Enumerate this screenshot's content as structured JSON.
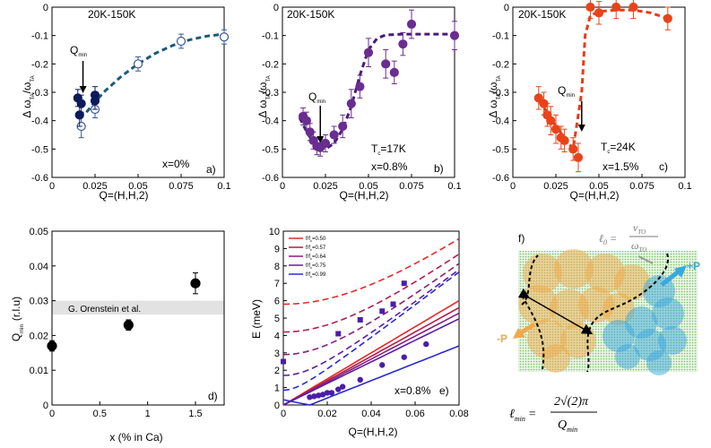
{
  "colors": {
    "panel_a_filled": "#0d1a5c",
    "panel_a_open": "#3a5a9a",
    "panel_a_fit": "#1a5a7a",
    "panel_b": "#6a2d91",
    "panel_b_fit": "#4b1a78",
    "panel_c": "#e8441a",
    "panel_c_fit": "#e83a1a",
    "panel_d": "#000000",
    "band": "#e2e2e2",
    "panel_f_orange": "#f0a94a",
    "panel_f_blue": "#3aa8e0",
    "panel_f_green": "#7bbf6a"
  },
  "chart_data": [
    {
      "panel": "a",
      "type": "scatter",
      "title": "20K-150K",
      "panel_label": "a)",
      "composition_label": "x=0%",
      "qmin_label": "Q",
      "qmin_sub": "min",
      "xlabel": "Q=(H,H,2)",
      "ylabel_main": "Δ ω",
      "ylabel_sub1": "TA",
      "ylabel_mid": "/ω",
      "ylabel_sub2": "TA",
      "xlim": [
        0,
        0.1
      ],
      "ylim": [
        -0.6,
        0
      ],
      "xticks": [
        "0",
        "0.025",
        "0.05",
        "0.075",
        "0.1"
      ],
      "yticks": [
        "0",
        "-0.1",
        "-0.2",
        "-0.3",
        "-0.4",
        "-0.5",
        "-0.6"
      ],
      "arrow_x": 0.018,
      "series": [
        {
          "name": "filled",
          "x": [
            0.015,
            0.016,
            0.017,
            0.025,
            0.025
          ],
          "y": [
            -0.32,
            -0.38,
            -0.34,
            -0.31,
            -0.33
          ],
          "err": [
            0.03,
            0.04,
            0.03,
            0.03,
            0.03
          ]
        },
        {
          "name": "open",
          "x": [
            0.017,
            0.025,
            0.05,
            0.075,
            0.1
          ],
          "y": [
            -0.42,
            -0.36,
            -0.2,
            -0.12,
            -0.105
          ],
          "err": [
            0.04,
            0.03,
            0.025,
            0.025,
            0.025
          ]
        }
      ],
      "fit": {
        "x": [
          0.02,
          0.03,
          0.04,
          0.05,
          0.06,
          0.07,
          0.08,
          0.09,
          0.1
        ],
        "y": [
          -0.37,
          -0.3,
          -0.245,
          -0.2,
          -0.163,
          -0.135,
          -0.115,
          -0.102,
          -0.095
        ]
      }
    },
    {
      "panel": "b",
      "type": "scatter",
      "title": "20K-150K",
      "panel_label": "b)",
      "composition_label": "x=0.8%",
      "tc_label": "T",
      "tc_sub": "c",
      "tc_value": "=17K",
      "qmin_label": "Q",
      "qmin_sub": "min",
      "xlabel": "Q=(H,H,2)",
      "ylabel_main": "Δ ω",
      "ylabel_sub1": "TA",
      "ylabel_mid": "/ω",
      "ylabel_sub2": "TA",
      "xlim": [
        0,
        0.1
      ],
      "ylim": [
        -0.6,
        0
      ],
      "xticks": [
        "0",
        "0.025",
        "0.05",
        "0.075",
        "0.1"
      ],
      "yticks": [
        "0",
        "-0.1",
        "-0.2",
        "-0.3",
        "-0.4",
        "-0.5",
        "-0.6"
      ],
      "arrow_x": 0.022,
      "series": [
        {
          "name": "data",
          "x": [
            0.012,
            0.014,
            0.016,
            0.018,
            0.02,
            0.022,
            0.025,
            0.03,
            0.035,
            0.04,
            0.045,
            0.05,
            0.06,
            0.065,
            0.07,
            0.075,
            0.1
          ],
          "y": [
            -0.385,
            -0.4,
            -0.44,
            -0.47,
            -0.49,
            -0.495,
            -0.48,
            -0.45,
            -0.42,
            -0.34,
            -0.28,
            -0.16,
            -0.2,
            -0.23,
            -0.13,
            -0.06,
            -0.1
          ],
          "err": [
            0.03,
            0.03,
            0.03,
            0.03,
            0.03,
            0.03,
            0.03,
            0.03,
            0.04,
            0.05,
            0.04,
            0.05,
            0.05,
            0.04,
            0.04,
            0.05,
            0.05
          ]
        }
      ],
      "fit": {
        "x": [
          0.01,
          0.015,
          0.02,
          0.025,
          0.03,
          0.035,
          0.04,
          0.045,
          0.05,
          0.055,
          0.06,
          0.07,
          0.08,
          0.09,
          0.1
        ],
        "y": [
          -0.39,
          -0.45,
          -0.49,
          -0.5,
          -0.48,
          -0.43,
          -0.35,
          -0.24,
          -0.15,
          -0.11,
          -0.098,
          -0.095,
          -0.095,
          -0.095,
          -0.095
        ]
      }
    },
    {
      "panel": "c",
      "type": "scatter",
      "title": "20K-150K",
      "panel_label": "c)",
      "composition_label": "x=1.5%",
      "tc_label": "T",
      "tc_sub": "c",
      "tc_value": "=24K",
      "qmin_label": "Q",
      "qmin_sub": "min",
      "xlabel": "Q=(H,H,2)",
      "ylabel_main": "Δ ω",
      "ylabel_sub1": "TA",
      "ylabel_mid": "/ω",
      "ylabel_sub2": "TA",
      "xlim": [
        0,
        0.1
      ],
      "ylim": [
        -0.6,
        0
      ],
      "xticks": [
        "0",
        "0.025",
        "0.05",
        "0.075",
        "0.1"
      ],
      "yticks": [
        "0",
        "-0.1",
        "-0.2",
        "-0.3",
        "-0.4",
        "-0.5",
        "-0.6"
      ],
      "arrow_x": 0.04,
      "series": [
        {
          "name": "data",
          "x": [
            0.015,
            0.018,
            0.02,
            0.022,
            0.025,
            0.028,
            0.03,
            0.035,
            0.038,
            0.045,
            0.05,
            0.06,
            0.07,
            0.09
          ],
          "y": [
            -0.32,
            -0.34,
            -0.38,
            -0.4,
            -0.43,
            -0.46,
            -0.47,
            -0.5,
            -0.53,
            0.0,
            -0.02,
            0.0,
            0.0,
            -0.04
          ],
          "err": [
            0.04,
            0.04,
            0.04,
            0.05,
            0.05,
            0.04,
            0.04,
            0.04,
            0.05,
            0.04,
            0.04,
            0.04,
            0.04,
            0.04
          ]
        }
      ],
      "fit": {
        "x": [
          0.015,
          0.02,
          0.025,
          0.03,
          0.035,
          0.04,
          0.042,
          0.045,
          0.05,
          0.06,
          0.07,
          0.08,
          0.09
        ],
        "y": [
          -0.33,
          -0.37,
          -0.42,
          -0.46,
          -0.5,
          -0.3,
          -0.1,
          -0.03,
          -0.015,
          -0.01,
          -0.01,
          -0.02,
          -0.04
        ]
      }
    },
    {
      "panel": "d",
      "type": "scatter",
      "panel_label": "d)",
      "band_label": "G. Orenstein et al.",
      "xlabel": "x (% in Ca)",
      "ylabel": "Q",
      "ylabel_sub": "min",
      "ylabel_unit": "(r.l.u)",
      "xlim": [
        0,
        1.8
      ],
      "ylim": [
        0,
        0.05
      ],
      "band": [
        0.026,
        0.03
      ],
      "xticks": [
        "0",
        "0.5",
        "1",
        "1.5"
      ],
      "yticks": [
        "0",
        "0.01",
        "0.02",
        "0.03",
        "0.04",
        "0.05"
      ],
      "series": [
        {
          "name": "Qmin",
          "x": [
            0,
            0.8,
            1.5
          ],
          "y": [
            0.017,
            0.023,
            0.035
          ],
          "err": [
            0.0015,
            0.0015,
            0.003
          ]
        }
      ]
    },
    {
      "panel": "e",
      "type": "line",
      "panel_label": "e)",
      "composition_label": "x=0.8%",
      "xlabel": "Q=(H,H,2)",
      "ylabel": "E (meV)",
      "xlim": [
        0,
        0.08
      ],
      "ylim": [
        0,
        10
      ],
      "xticks": [
        "0",
        "0.02",
        "0.04",
        "0.06",
        "0.08"
      ],
      "yticks": [
        "0",
        "1",
        "2",
        "3",
        "4",
        "5",
        "6",
        "7",
        "8",
        "9",
        "10"
      ],
      "legend": [
        "f/f_c=0.50",
        "f/f_c=0.57",
        "f/f_c=0.64",
        "f/f_c=0.75",
        "f/f_c=0.99"
      ],
      "legend_prefix": "f/f",
      "legend_sub": "c",
      "legend_values": [
        "=0.50",
        "=0.57",
        "=0.64",
        "=0.75",
        "=0.99"
      ],
      "legend_colors": [
        "#e8282a",
        "#b01e4a",
        "#8a1e78",
        "#5a1eaa",
        "#2a2ad0"
      ],
      "to_gap": [
        5.8,
        4.2,
        2.9,
        1.7,
        0.85
      ],
      "ta_slope": [
        75,
        70,
        66,
        62,
        50
      ],
      "ta_offset": [
        0,
        0,
        0,
        0,
        0.012
      ],
      "data_TA": {
        "x": [
          0.012,
          0.014,
          0.016,
          0.018,
          0.02,
          0.022,
          0.025,
          0.027,
          0.035,
          0.045,
          0.055,
          0.065
        ],
        "y": [
          0.45,
          0.5,
          0.55,
          0.6,
          0.7,
          0.7,
          0.9,
          1.05,
          1.45,
          2.3,
          2.75,
          3.5
        ]
      },
      "data_TO": {
        "x": [
          0.0,
          0.025,
          0.035,
          0.045,
          0.05,
          0.055
        ],
        "y": [
          2.5,
          4.1,
          4.9,
          5.4,
          5.8,
          7.0
        ]
      }
    }
  ],
  "panel_f": {
    "label": "f)",
    "plus_p": "+P",
    "minus_p": "-P",
    "l0_lhs": "ℓ",
    "l0_sub": "0",
    "l0_eq": "=",
    "l0_num": "v",
    "l0_num_sub": "TO",
    "l0_den": "ω",
    "l0_den_sub": "TO",
    "lmin_lhs": "ℓ",
    "lmin_sub": "min",
    "lmin_eq": "=",
    "lmin_num": "2√(2)π",
    "lmin_den": "Q",
    "lmin_den_sub": "min"
  }
}
